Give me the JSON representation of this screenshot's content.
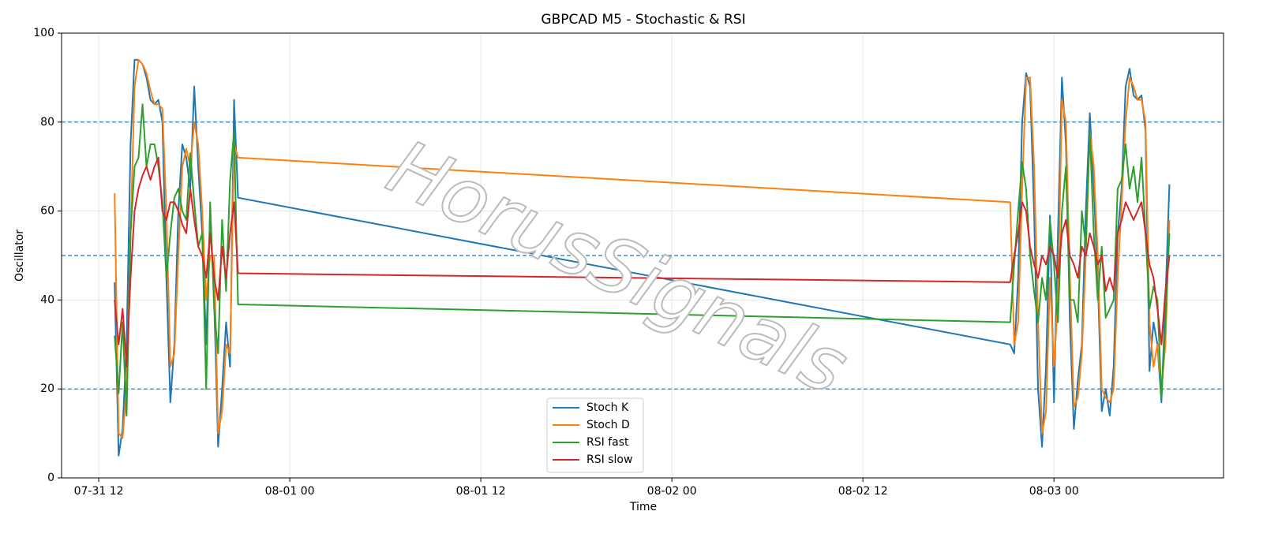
{
  "chart_data": {
    "type": "line",
    "title": "GBPCAD M5 - Stochastic & RSI",
    "x_label": "Time",
    "y_label": "Oscillator",
    "watermark": "HorusSignals",
    "x": [
      "07-31 13:00",
      "07-31 13:15",
      "07-31 13:30",
      "07-31 13:45",
      "07-31 14:00",
      "07-31 14:15",
      "07-31 14:30",
      "07-31 14:45",
      "07-31 15:00",
      "07-31 15:15",
      "07-31 15:30",
      "07-31 15:45",
      "07-31 16:00",
      "07-31 16:15",
      "07-31 16:30",
      "07-31 16:45",
      "07-31 17:00",
      "07-31 17:15",
      "07-31 17:30",
      "07-31 17:45",
      "07-31 18:00",
      "07-31 18:15",
      "07-31 18:30",
      "07-31 18:45",
      "07-31 19:00",
      "07-31 19:15",
      "07-31 19:30",
      "07-31 19:45",
      "07-31 20:00",
      "07-31 20:15",
      "07-31 20:30",
      "07-31 20:45",
      "08-02 21:15",
      "08-02 21:30",
      "08-02 21:45",
      "08-02 22:00",
      "08-02 22:15",
      "08-02 22:30",
      "08-02 22:45",
      "08-02 23:00",
      "08-02 23:15",
      "08-02 23:30",
      "08-02 23:45",
      "08-03 00:00",
      "08-03 00:15",
      "08-03 00:30",
      "08-03 00:45",
      "08-03 01:00",
      "08-03 01:15",
      "08-03 01:30",
      "08-03 01:45",
      "08-03 02:00",
      "08-03 02:15",
      "08-03 02:30",
      "08-03 02:45",
      "08-03 03:00",
      "08-03 03:15",
      "08-03 03:30",
      "08-03 03:45",
      "08-03 04:00",
      "08-03 04:15",
      "08-03 04:30",
      "08-03 04:45",
      "08-03 05:00",
      "08-03 05:15",
      "08-03 05:30",
      "08-03 05:45",
      "08-03 06:00",
      "08-03 06:15",
      "08-03 06:30",
      "08-03 06:45",
      "08-03 07:00",
      "08-03 07:15"
    ],
    "series": [
      {
        "name": "Stoch K",
        "color": "#1f77b4",
        "values": [
          44,
          5,
          11,
          30,
          75,
          94,
          94,
          93,
          90,
          85,
          84,
          85,
          80,
          45,
          17,
          30,
          60,
          75,
          72,
          65,
          88,
          70,
          55,
          30,
          60,
          40,
          7,
          20,
          35,
          25,
          85,
          63,
          30,
          28,
          45,
          80,
          91,
          88,
          60,
          20,
          7,
          25,
          59,
          17,
          55,
          90,
          75,
          35,
          11,
          22,
          30,
          60,
          82,
          65,
          45,
          15,
          20,
          14,
          25,
          55,
          65,
          88,
          92,
          86,
          85,
          86,
          78,
          24,
          35,
          30,
          17,
          40,
          66
        ]
      },
      {
        "name": "Stoch D",
        "color": "#ff7f0e",
        "values": [
          64,
          10,
          9,
          20,
          55,
          88,
          94,
          93,
          91,
          87,
          84,
          84,
          83,
          60,
          25,
          28,
          50,
          70,
          74,
          70,
          80,
          75,
          60,
          40,
          50,
          50,
          10,
          15,
          30,
          28,
          75,
          72,
          62,
          30,
          35,
          65,
          90,
          90,
          70,
          35,
          10,
          15,
          45,
          25,
          40,
          85,
          80,
          45,
          16,
          18,
          28,
          50,
          78,
          70,
          50,
          20,
          18,
          17,
          20,
          45,
          62,
          80,
          90,
          88,
          85,
          85,
          80,
          35,
          25,
          30,
          20,
          30,
          58
        ]
      },
      {
        "name": "RSI fast",
        "color": "#2ca02c",
        "values": [
          32,
          19,
          35,
          14,
          55,
          70,
          72,
          84,
          70,
          75,
          75,
          70,
          62,
          45,
          55,
          63,
          65,
          60,
          58,
          73,
          62,
          52,
          55,
          20,
          62,
          38,
          28,
          58,
          42,
          67,
          78,
          39,
          35,
          48,
          60,
          71,
          65,
          50,
          42,
          35,
          45,
          40,
          58,
          48,
          35,
          60,
          70,
          40,
          40,
          35,
          60,
          52,
          78,
          55,
          40,
          52,
          36,
          38,
          40,
          65,
          67,
          75,
          65,
          70,
          62,
          72,
          55,
          38,
          43,
          40,
          18,
          35,
          55
        ]
      },
      {
        "name": "RSI slow",
        "color": "#d62728",
        "values": [
          40,
          30,
          38,
          25,
          45,
          60,
          65,
          68,
          70,
          67,
          70,
          72,
          60,
          58,
          62,
          62,
          60,
          57,
          55,
          65,
          58,
          52,
          50,
          45,
          55,
          45,
          40,
          52,
          45,
          55,
          62,
          46,
          44,
          50,
          55,
          62,
          60,
          52,
          48,
          45,
          50,
          48,
          52,
          50,
          45,
          55,
          58,
          50,
          48,
          45,
          52,
          50,
          55,
          52,
          48,
          50,
          42,
          45,
          42,
          55,
          58,
          62,
          60,
          58,
          60,
          62,
          55,
          48,
          45,
          38,
          30,
          42,
          50
        ]
      }
    ],
    "xlim": [
      "07-31 09:40",
      "08-03 10:39"
    ],
    "xticks": [
      {
        "value": "07-31 12:00",
        "label": "07-31 12"
      },
      {
        "value": "08-01 00:00",
        "label": "08-01 00"
      },
      {
        "value": "08-01 12:00",
        "label": "08-01 12"
      },
      {
        "value": "08-02 00:00",
        "label": "08-02 00"
      },
      {
        "value": "08-02 12:00",
        "label": "08-02 12"
      },
      {
        "value": "08-03 00:00",
        "label": "08-03 00"
      }
    ],
    "ylim": [
      0,
      100
    ],
    "yticks": [
      0,
      20,
      40,
      60,
      80,
      100
    ],
    "hlines": [
      20,
      50,
      80
    ],
    "hline_color": "#1f77b4",
    "grid": true,
    "legend": "lower center"
  }
}
